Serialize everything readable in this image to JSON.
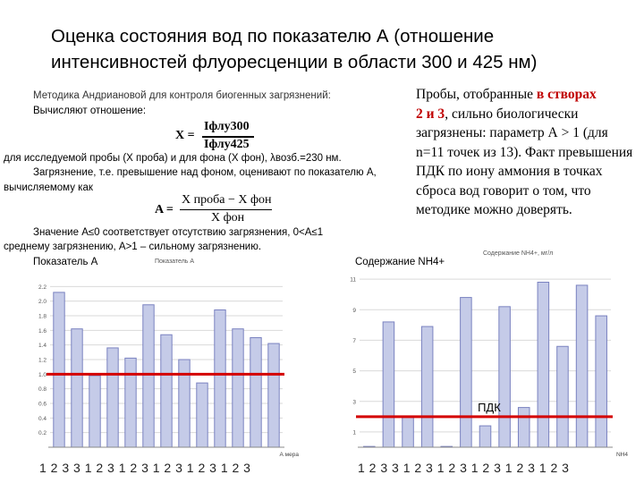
{
  "title": "Оценка  состояния вод  по показателю А (отношение интенсивностей флуоресценции в области 300 и 425 нм)",
  "method": {
    "line1": "Методика Андриановой для контроля биогенных загрязнений:",
    "line2": "Вычисляют отношение:",
    "ratio_lhs": "X =",
    "ratio_num": "Iфлу300",
    "ratio_den": "Iфлу425",
    "line3": "для исследуемой пробы (Х проба) и для фона (Х фон),  λвозб.=230 нм.",
    "line4": "Загрязнение, т.е. превышение над фоном, оценивают по показателю А,",
    "line5": "вычисляемому как",
    "a_lhs": "A =",
    "a_num": "X проба − X фон",
    "a_den": "X фон",
    "line6": "Значение   А≤0   соответствует   отсутствию   загрязнения,   0<А≤1",
    "line7": "среднему загрязнению,  А>1 – сильному загрязнению."
  },
  "note": {
    "part1": "Пробы, отобранные ",
    "highlight1": "в створах",
    "highlight2": "2 и 3",
    "part2": ", сильно биологически загрязнены: параметр А > 1 (для n=11 точек из 13). Факт превышения ПДК по иону аммония в точках сброса вод говорит о том, что методике можно доверять."
  },
  "left_panel": {
    "label": "Показатель А",
    "small_title": "Показатель А",
    "bottom_numbers": "1 2 3 3  1 2 3 1  2 3  1 2 3 1 2 3  1 2 3",
    "legend": "А мера"
  },
  "right_panel": {
    "label": "Содержание NH4+",
    "small_title": "Содержание NH4+, мг/л",
    "pdk_label": "ПДК",
    "bottom_numbers": "1  2 3 3 1  2 3 1  2 3  1 2 3  1 2 3 1  2 3",
    "legend": "NH4"
  },
  "colors": {
    "bar_fill": "#c5cbe8",
    "bar_edge": "#7a82c0",
    "threshold": "#d40000",
    "grid": "#d9d9d9",
    "title_red": "#c00000",
    "blue_digit": "#1f3fa8"
  },
  "chart_data": [
    {
      "type": "bar",
      "title": "Показатель А",
      "ylim": [
        0,
        2.4
      ],
      "yticks": [
        0.2,
        0.4,
        0.6,
        0.8,
        1.0,
        1.2,
        1.4,
        1.6,
        1.8,
        2.0,
        2.2
      ],
      "values": [
        2.12,
        1.62,
        0.98,
        1.36,
        1.22,
        1.95,
        1.54,
        1.2,
        0.88,
        1.88,
        1.62,
        1.5,
        1.42
      ],
      "threshold": 1.0,
      "grid": true
    },
    {
      "type": "bar",
      "title": "Содержание NH4+",
      "ylim": [
        0,
        12
      ],
      "yticks": [
        1,
        3,
        5,
        7,
        9,
        11
      ],
      "values": [
        0.05,
        8.2,
        2.0,
        7.9,
        0.05,
        9.8,
        1.4,
        9.2,
        2.6,
        10.8,
        6.6,
        10.6,
        8.6
      ],
      "threshold": 2.0,
      "threshold_label": "ПДК",
      "grid": true
    }
  ]
}
